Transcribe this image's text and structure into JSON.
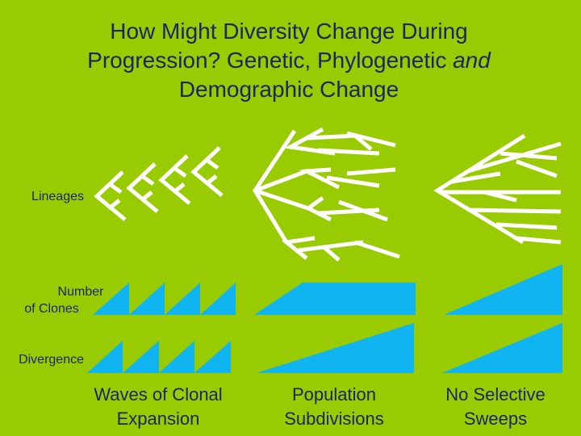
{
  "title": {
    "line1": "How Might Diversity Change During",
    "line2": "Progression? Genetic, Phylogenetic",
    "emphasis": "and",
    "line3": "Demographic Change"
  },
  "rows": {
    "lineages": "Lineages",
    "clones": [
      "Number",
      "of Clones"
    ],
    "divergence": "Divergence"
  },
  "columns": [
    [
      "Waves of Clonal",
      "Expansion"
    ],
    [
      "Population",
      "Subdivisions"
    ],
    [
      "No Selective",
      "Sweeps"
    ]
  ]
}
